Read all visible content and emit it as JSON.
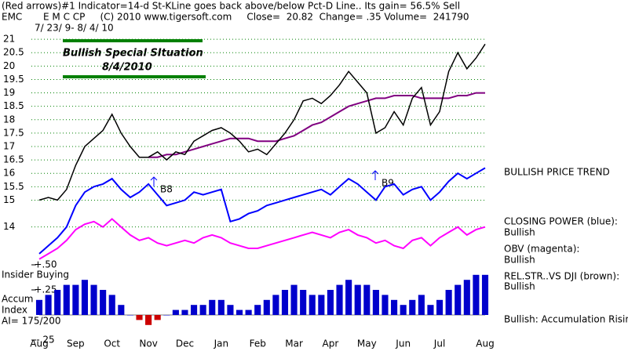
{
  "chart_data": [
    {
      "type": "line",
      "title": "(Red arrows)#1 Indicator=14-d St-KLine goes back above/below Pct-D Line.. Its gain= 56.5% Sell",
      "subtitle": "EMC       E M C CP     (C) 2010 www.tigersoft.com     Close=  20.82  Change= .35 Volume=  241790",
      "date_range": "7/ 23/ 9- 8/ 4/ 10",
      "annotations": [
        "Bullish Special SItuation",
        "8/4/2010",
        "B8",
        "B9",
        "Insider Buying"
      ],
      "side_labels": [
        "BULLISH PRICE TREND",
        "CLOSING POWER (blue):",
        "Bullish",
        "OBV (magenta):",
        "Bullish",
        "REL.STR..VS DJI (brown):",
        "Bullish",
        "Bullish: Accumulation Rising"
      ],
      "categories": [
        "Aug",
        null,
        null,
        null,
        "Sep",
        null,
        null,
        null,
        "Oct",
        null,
        null,
        null,
        "Nov",
        null,
        null,
        null,
        "Dec",
        null,
        null,
        null,
        "Jan",
        null,
        null,
        null,
        "Feb",
        null,
        null,
        null,
        "Mar",
        null,
        null,
        null,
        "Apr",
        null,
        null,
        null,
        "May",
        null,
        null,
        null,
        "Jun",
        null,
        null,
        null,
        "Jul",
        null,
        null,
        null,
        null,
        "Aug"
      ],
      "series": [
        {
          "name": "Closing Power",
          "color": "#0000ff",
          "values": [
            13.0,
            13.3,
            13.6,
            14.0,
            14.8,
            15.3,
            15.5,
            15.6,
            15.8,
            15.4,
            15.1,
            15.3,
            15.6,
            15.2,
            14.8,
            14.9,
            15.0,
            15.3,
            15.2,
            15.3,
            15.4,
            14.2,
            14.3,
            14.5,
            14.6,
            14.8,
            14.9,
            15.0,
            15.1,
            15.2,
            15.3,
            15.4,
            15.2,
            15.5,
            15.8,
            15.6,
            15.3,
            15.0,
            15.5,
            15.6,
            15.2,
            15.4,
            15.5,
            15.0,
            15.3,
            15.7,
            16.0,
            15.8,
            16.0,
            16.2
          ]
        },
        {
          "name": "OBV",
          "color": "#ff00ff",
          "values": [
            12.8,
            13.0,
            13.2,
            13.5,
            13.9,
            14.1,
            14.2,
            14.0,
            14.3,
            14.0,
            13.7,
            13.5,
            13.6,
            13.4,
            13.3,
            13.4,
            13.5,
            13.4,
            13.6,
            13.7,
            13.6,
            13.4,
            13.3,
            13.2,
            13.2,
            13.3,
            13.4,
            13.5,
            13.6,
            13.7,
            13.8,
            13.7,
            13.6,
            13.8,
            13.9,
            13.7,
            13.6,
            13.4,
            13.5,
            13.3,
            13.2,
            13.5,
            13.6,
            13.3,
            13.6,
            13.8,
            14.0,
            13.7,
            13.9,
            14.0
          ]
        },
        {
          "name": "65-dma",
          "color": "#800080",
          "values": [
            null,
            null,
            null,
            null,
            null,
            null,
            null,
            null,
            null,
            null,
            null,
            null,
            16.6,
            16.6,
            16.7,
            16.7,
            16.8,
            16.9,
            17.0,
            17.1,
            17.2,
            17.3,
            17.3,
            17.3,
            17.2,
            17.2,
            17.2,
            17.3,
            17.4,
            17.6,
            17.8,
            17.9,
            18.1,
            18.3,
            18.5,
            18.6,
            18.7,
            18.8,
            18.8,
            18.9,
            18.9,
            18.9,
            18.8,
            18.8,
            18.8,
            18.8,
            18.9,
            18.9,
            19.0,
            19.0
          ]
        },
        {
          "name": "EMC",
          "color": "#000000",
          "values": [
            15.0,
            15.1,
            15.0,
            15.4,
            16.3,
            17.0,
            17.3,
            17.6,
            18.2,
            17.5,
            17.0,
            16.6,
            16.6,
            16.8,
            16.5,
            16.8,
            16.7,
            17.2,
            17.4,
            17.6,
            17.7,
            17.5,
            17.2,
            16.8,
            16.9,
            16.7,
            17.1,
            17.5,
            18.0,
            18.7,
            18.8,
            18.6,
            18.9,
            19.3,
            19.8,
            19.4,
            19.0,
            17.5,
            17.7,
            18.3,
            17.8,
            18.8,
            19.2,
            17.8,
            18.3,
            19.8,
            20.5,
            19.9,
            20.3,
            20.82
          ]
        }
      ],
      "ylim": [
        12.5,
        21.5
      ],
      "yticks": [
        21,
        20.5,
        20,
        19.5,
        19,
        18.5,
        18,
        17.5,
        17,
        16.5,
        16,
        15.5,
        15,
        14
      ],
      "grid": true
    },
    {
      "type": "bar",
      "title": "Accum",
      "subtitle": "Index",
      "note": "AI= 175/200",
      "color": "#0000cc",
      "negative_color": "#cc0000",
      "values": [
        0.15,
        0.2,
        0.25,
        0.3,
        0.3,
        0.35,
        0.3,
        0.25,
        0.2,
        0.1,
        0.0,
        -0.05,
        -0.1,
        -0.05,
        0.0,
        0.05,
        0.05,
        0.1,
        0.1,
        0.15,
        0.15,
        0.1,
        0.05,
        0.05,
        0.1,
        0.15,
        0.2,
        0.25,
        0.3,
        0.25,
        0.2,
        0.2,
        0.25,
        0.3,
        0.35,
        0.3,
        0.3,
        0.25,
        0.2,
        0.15,
        0.1,
        0.15,
        0.2,
        0.1,
        0.15,
        0.25,
        0.3,
        0.35,
        0.4,
        0.4
      ],
      "ylim": [
        -0.25,
        0.5
      ],
      "yticks": [
        {
          "value": 0.5,
          "label": "+.50"
        },
        {
          "value": 0.25,
          "label": "+.25"
        },
        {
          "value": -0.25,
          "label": "-.25"
        }
      ]
    }
  ]
}
